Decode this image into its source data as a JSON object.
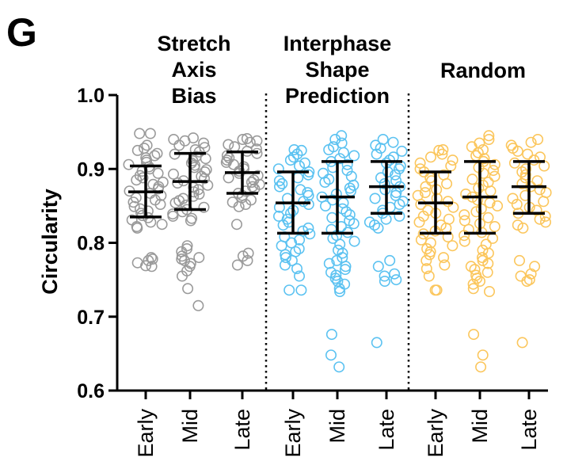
{
  "panel_label": "G",
  "chart_data": {
    "type": "scatter",
    "ylabel": "Circularity",
    "xlabel": "",
    "ylim": [
      0.6,
      1.0
    ],
    "yticks": [
      "0.6",
      "0.7",
      "0.8",
      "0.9",
      "1.0"
    ],
    "groups": [
      {
        "title_lines": [
          "Stretch",
          "Axis",
          "Bias"
        ],
        "color": "#9a9a9a",
        "mean_color": "#000000",
        "categories": [
          {
            "label": "Early",
            "mean": 0.869,
            "sd_low": 0.835,
            "sd_high": 0.904,
            "points": [
              0.948,
              0.948,
              0.932,
              0.928,
              0.925,
              0.921,
              0.918,
              0.915,
              0.912,
              0.909,
              0.906,
              0.903,
              0.9,
              0.897,
              0.894,
              0.891,
              0.888,
              0.885,
              0.882,
              0.879,
              0.876,
              0.873,
              0.87,
              0.867,
              0.864,
              0.861,
              0.858,
              0.855,
              0.852,
              0.849,
              0.846,
              0.843,
              0.84,
              0.837,
              0.834,
              0.831,
              0.828,
              0.825,
              0.822,
              0.82,
              0.78,
              0.778,
              0.776,
              0.773,
              0.769,
              0.768
            ]
          },
          {
            "label": "Mid",
            "mean": 0.883,
            "sd_low": 0.845,
            "sd_high": 0.921,
            "points": [
              0.942,
              0.94,
              0.938,
              0.935,
              0.932,
              0.929,
              0.926,
              0.923,
              0.92,
              0.917,
              0.914,
              0.911,
              0.908,
              0.905,
              0.902,
              0.899,
              0.896,
              0.893,
              0.89,
              0.887,
              0.884,
              0.881,
              0.878,
              0.875,
              0.872,
              0.869,
              0.866,
              0.863,
              0.86,
              0.857,
              0.854,
              0.851,
              0.848,
              0.845,
              0.842,
              0.839,
              0.836,
              0.833,
              0.83,
              0.796,
              0.792,
              0.788,
              0.782,
              0.78,
              0.778,
              0.776,
              0.772,
              0.768,
              0.762,
              0.755,
              0.738,
              0.715
            ]
          },
          {
            "label": "Late",
            "mean": 0.895,
            "sd_low": 0.867,
            "sd_high": 0.923,
            "points": [
              0.941,
              0.94,
              0.938,
              0.936,
              0.933,
              0.93,
              0.927,
              0.924,
              0.921,
              0.918,
              0.915,
              0.912,
              0.909,
              0.906,
              0.903,
              0.9,
              0.897,
              0.894,
              0.891,
              0.888,
              0.885,
              0.882,
              0.879,
              0.876,
              0.873,
              0.87,
              0.867,
              0.864,
              0.861,
              0.858,
              0.855,
              0.852,
              0.849,
              0.825,
              0.786,
              0.782,
              0.776,
              0.77
            ]
          }
        ]
      },
      {
        "title_lines": [
          "Interphase",
          "Shape",
          "Prediction"
        ],
        "color": "#5bc2f1",
        "mean_color": "#000000",
        "categories": [
          {
            "label": "Early",
            "mean": 0.854,
            "sd_low": 0.813,
            "sd_high": 0.896,
            "points": [
              0.926,
              0.925,
              0.92,
              0.916,
              0.912,
              0.908,
              0.904,
              0.9,
              0.896,
              0.892,
              0.888,
              0.884,
              0.88,
              0.876,
              0.872,
              0.868,
              0.864,
              0.86,
              0.856,
              0.852,
              0.848,
              0.844,
              0.84,
              0.836,
              0.832,
              0.828,
              0.824,
              0.82,
              0.816,
              0.812,
              0.808,
              0.804,
              0.8,
              0.796,
              0.792,
              0.788,
              0.784,
              0.78,
              0.776,
              0.77,
              0.765,
              0.755,
              0.736,
              0.736
            ]
          },
          {
            "label": "Mid",
            "mean": 0.862,
            "sd_low": 0.813,
            "sd_high": 0.91,
            "points": [
              0.945,
              0.94,
              0.935,
              0.93,
              0.926,
              0.922,
              0.918,
              0.914,
              0.91,
              0.906,
              0.902,
              0.898,
              0.894,
              0.89,
              0.886,
              0.882,
              0.878,
              0.874,
              0.87,
              0.866,
              0.862,
              0.858,
              0.854,
              0.85,
              0.846,
              0.842,
              0.838,
              0.834,
              0.83,
              0.826,
              0.822,
              0.818,
              0.814,
              0.81,
              0.806,
              0.802,
              0.798,
              0.79,
              0.786,
              0.78,
              0.776,
              0.772,
              0.768,
              0.764,
              0.76,
              0.756,
              0.752,
              0.748,
              0.744,
              0.738,
              0.734,
              0.676,
              0.648,
              0.632
            ]
          },
          {
            "label": "Late",
            "mean": 0.876,
            "sd_low": 0.84,
            "sd_high": 0.91,
            "points": [
              0.94,
              0.936,
              0.932,
              0.928,
              0.924,
              0.92,
              0.916,
              0.912,
              0.908,
              0.904,
              0.9,
              0.896,
              0.892,
              0.888,
              0.884,
              0.88,
              0.876,
              0.872,
              0.868,
              0.864,
              0.86,
              0.856,
              0.852,
              0.848,
              0.844,
              0.84,
              0.836,
              0.832,
              0.828,
              0.824,
              0.82,
              0.776,
              0.768,
              0.758,
              0.755,
              0.75,
              0.748,
              0.665
            ]
          }
        ]
      },
      {
        "title_lines": [
          "Random"
        ],
        "color": "#fbc65c",
        "mean_color": "#000000",
        "categories": [
          {
            "label": "Early",
            "mean": 0.854,
            "sd_low": 0.813,
            "sd_high": 0.896,
            "points": [
              0.926,
              0.925,
              0.92,
              0.916,
              0.912,
              0.908,
              0.904,
              0.9,
              0.896,
              0.892,
              0.888,
              0.884,
              0.88,
              0.876,
              0.872,
              0.868,
              0.864,
              0.86,
              0.856,
              0.852,
              0.848,
              0.844,
              0.84,
              0.836,
              0.832,
              0.828,
              0.824,
              0.82,
              0.816,
              0.812,
              0.808,
              0.804,
              0.8,
              0.796,
              0.792,
              0.788,
              0.784,
              0.78,
              0.776,
              0.77,
              0.765,
              0.755,
              0.736,
              0.736
            ]
          },
          {
            "label": "Mid",
            "mean": 0.862,
            "sd_low": 0.813,
            "sd_high": 0.91,
            "points": [
              0.945,
              0.94,
              0.935,
              0.93,
              0.926,
              0.922,
              0.918,
              0.914,
              0.91,
              0.906,
              0.902,
              0.898,
              0.894,
              0.89,
              0.886,
              0.882,
              0.878,
              0.874,
              0.87,
              0.866,
              0.862,
              0.858,
              0.854,
              0.85,
              0.846,
              0.842,
              0.838,
              0.834,
              0.83,
              0.826,
              0.822,
              0.818,
              0.814,
              0.81,
              0.806,
              0.802,
              0.798,
              0.79,
              0.786,
              0.78,
              0.776,
              0.772,
              0.768,
              0.764,
              0.76,
              0.756,
              0.752,
              0.748,
              0.744,
              0.738,
              0.734,
              0.676,
              0.648,
              0.632
            ]
          },
          {
            "label": "Late",
            "mean": 0.876,
            "sd_low": 0.84,
            "sd_high": 0.91,
            "points": [
              0.94,
              0.936,
              0.932,
              0.928,
              0.924,
              0.92,
              0.916,
              0.912,
              0.908,
              0.904,
              0.9,
              0.896,
              0.892,
              0.888,
              0.884,
              0.88,
              0.876,
              0.872,
              0.868,
              0.864,
              0.86,
              0.856,
              0.852,
              0.848,
              0.844,
              0.84,
              0.836,
              0.832,
              0.828,
              0.824,
              0.82,
              0.776,
              0.768,
              0.758,
              0.755,
              0.75,
              0.748,
              0.665
            ]
          }
        ]
      }
    ]
  }
}
